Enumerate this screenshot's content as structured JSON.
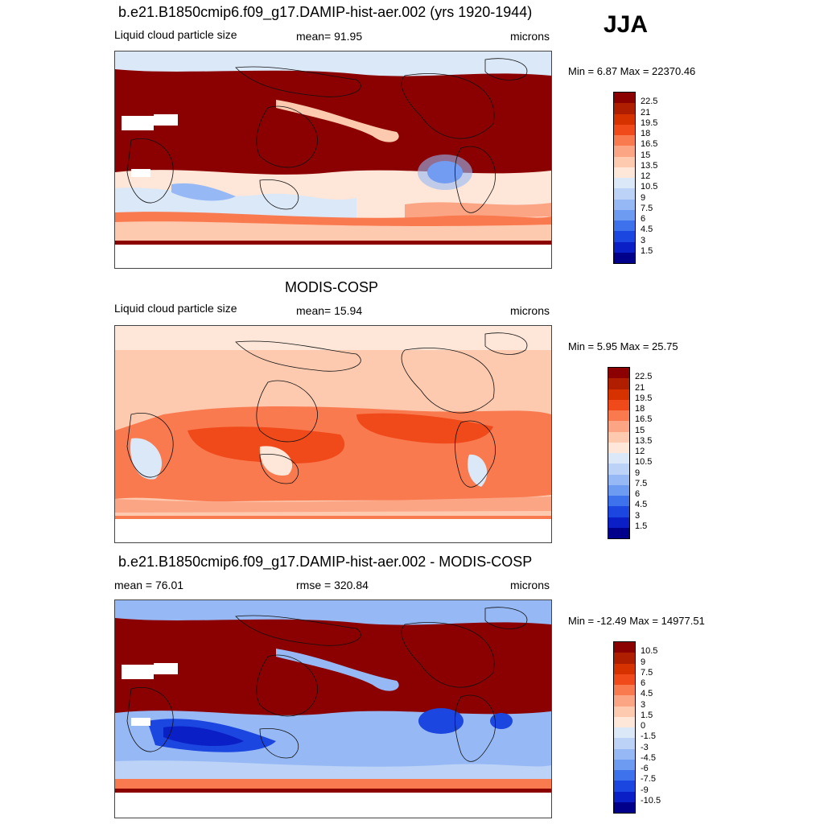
{
  "season": "JJA",
  "panels": [
    {
      "title": "b.e21.B1850cmip6.f09_g17.DAMIP-hist-aer.002 (yrs 1920-1944)",
      "left_label": "Liquid cloud particle size",
      "center_label": "mean=  91.95",
      "right_label": "microns",
      "minmax": "Min =   6.87 Max = 22370.46"
    },
    {
      "title": "MODIS-COSP",
      "left_label": "Liquid cloud particle size",
      "center_label": "mean=  15.94",
      "right_label": "microns",
      "minmax": "Min =   5.95 Max =  25.75"
    },
    {
      "title": "b.e21.B1850cmip6.f09_g17.DAMIP-hist-aer.002 - MODIS-COSP",
      "left_label": "mean =  76.01",
      "center_label": "rmse = 320.84",
      "right_label": "microns",
      "minmax": "Min = -12.49 Max = 14977.51"
    }
  ],
  "colorbar_abs": {
    "labels": [
      "22.5",
      "21",
      "19.5",
      "18",
      "16.5",
      "15",
      "13.5",
      "12",
      "10.5",
      "9",
      "7.5",
      "6",
      "4.5",
      "3",
      "1.5"
    ],
    "colors": [
      "#8b0000",
      "#b01e00",
      "#d63200",
      "#f04a1a",
      "#fa7a50",
      "#fca585",
      "#fdcab0",
      "#fee6d8",
      "#dbe8f8",
      "#bcd2f6",
      "#96b9f5",
      "#6d9bf2",
      "#3e72ec",
      "#1b46df",
      "#0a1fc6",
      "#00008b"
    ]
  },
  "colorbar_diff": {
    "labels": [
      "10.5",
      "9",
      "7.5",
      "6",
      "4.5",
      "3",
      "1.5",
      "0",
      "-1.5",
      "-3",
      "-4.5",
      "-6",
      "-7.5",
      "-9",
      "-10.5"
    ],
    "colors": [
      "#8b0000",
      "#b01e00",
      "#d63200",
      "#f04a1a",
      "#fa7a50",
      "#fca585",
      "#fdcab0",
      "#fee6d8",
      "#dbe8f8",
      "#bcd2f6",
      "#96b9f5",
      "#6d9bf2",
      "#3e72ec",
      "#1b46df",
      "#0a1fc6",
      "#00008b"
    ]
  }
}
